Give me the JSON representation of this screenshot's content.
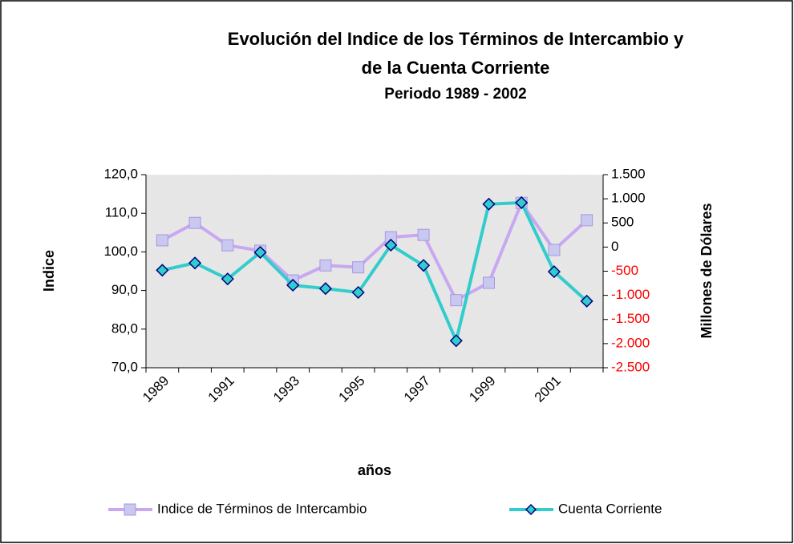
{
  "chart_data": {
    "type": "line",
    "title": [
      "Evolución del Indice de los Términos de Intercambio y",
      "de la Cuenta Corriente"
    ],
    "subtitle": "Periodo 1989 - 2002",
    "x_label": "años",
    "y_label": "Indice",
    "y2_label": "Millones de Dólares",
    "categories": [
      "1989",
      null,
      "1991",
      null,
      "1993",
      null,
      "1995",
      null,
      "1997",
      null,
      "1999",
      null,
      "2001",
      null
    ],
    "series": [
      {
        "name": "Indice de Términos de Intercambio",
        "color": "#c8a8f0",
        "marker": "square",
        "marker_color": "#c8c8f0",
        "values": [
          103.0,
          107.5,
          101.7,
          100.3,
          92.6,
          96.5,
          96.0,
          103.8,
          104.4,
          87.5,
          92.0,
          112.7,
          100.5,
          108.2
        ]
      },
      {
        "name": "Cuenta Corriente",
        "color": "#33cccc",
        "marker": "diamond",
        "marker_color": "#33cccc",
        "axis": "y2",
        "values": [
          -480,
          -330,
          -660,
          -110,
          -790,
          -860,
          -940,
          40,
          -380,
          -1940,
          890,
          920,
          -510,
          -1120
        ]
      }
    ],
    "ylim": [
      70,
      120
    ],
    "yticks": [
      {
        "value": 70,
        "label": "70,0"
      },
      {
        "value": 80,
        "label": "80,0"
      },
      {
        "value": 90,
        "label": "90,0"
      },
      {
        "value": 100,
        "label": "100,0"
      },
      {
        "value": 110,
        "label": "110,0"
      },
      {
        "value": 120,
        "label": "120,0"
      }
    ],
    "y2lim": [
      -2500,
      1500
    ],
    "y2ticks": [
      {
        "value": -2500,
        "label": "-2.500"
      },
      {
        "value": -2000,
        "label": "-2.000"
      },
      {
        "value": -1500,
        "label": "-1.500"
      },
      {
        "value": -1000,
        "label": "-1.000"
      },
      -500,
      0,
      500,
      {
        "value": 1000,
        "label": "1.000"
      },
      {
        "value": 1500,
        "label": "1.500"
      }
    ],
    "y2_negative_color": "#ff0000",
    "grid": false,
    "legend": "bottom"
  }
}
